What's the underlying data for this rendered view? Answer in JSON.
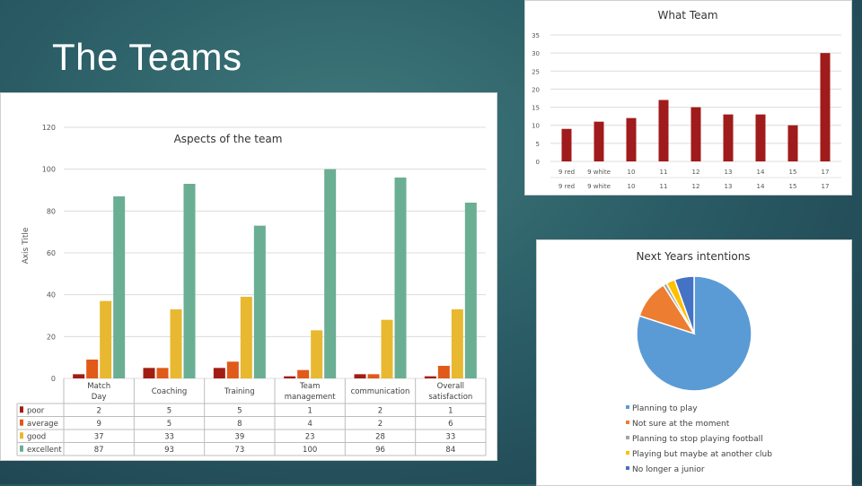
{
  "slide": {
    "title": "The Teams"
  },
  "chart_data": [
    {
      "type": "bar",
      "title": "What Team",
      "categories": [
        "9 red",
        "9 white",
        "10",
        "11",
        "12",
        "13",
        "14",
        "15",
        "17"
      ],
      "values": [
        9,
        11,
        12,
        17,
        15,
        13,
        13,
        10,
        30
      ],
      "ylim": [
        0,
        35
      ],
      "yticks": [
        0,
        5,
        10,
        15,
        20,
        25,
        30,
        35
      ],
      "grid": true,
      "colors": {
        "bar": "#a01b1b",
        "grid": "#dcdcdc",
        "text": "#555555"
      }
    },
    {
      "type": "bar",
      "title": "Aspects of the team",
      "ylabel": "Axis Title",
      "categories": [
        "Match Day",
        "Coaching",
        "Training",
        "Team management",
        "communication",
        "Overall satisfaction"
      ],
      "series": [
        {
          "name": "poor",
          "values": [
            2,
            5,
            5,
            1,
            2,
            1
          ],
          "color": "#a11d14"
        },
        {
          "name": "average",
          "values": [
            9,
            5,
            8,
            4,
            2,
            6
          ],
          "color": "#e05a1a"
        },
        {
          "name": "good",
          "values": [
            37,
            33,
            39,
            23,
            28,
            33
          ],
          "color": "#e8b830"
        },
        {
          "name": "excellent",
          "values": [
            87,
            93,
            73,
            100,
            96,
            84
          ],
          "color": "#6aae94"
        }
      ],
      "ylim": [
        0,
        120
      ],
      "yticks": [
        0,
        20,
        40,
        60,
        80,
        100,
        120
      ],
      "grid": true,
      "legend": "data-table",
      "colors": {
        "grid": "#dcdcdc",
        "text": "#404040"
      }
    },
    {
      "type": "pie",
      "title": "Next Years intentions",
      "labels": [
        "Planning to play",
        "Not sure at the moment",
        "Planning to stop playing football",
        "Playing but maybe at another club",
        "No longer a junior"
      ],
      "values": [
        80,
        11,
        1,
        2.5,
        5.5
      ],
      "colors": [
        "#5b9bd5",
        "#ed7d31",
        "#a5a5a5",
        "#ffc000",
        "#4472c4"
      ],
      "legend": "bottom"
    }
  ]
}
